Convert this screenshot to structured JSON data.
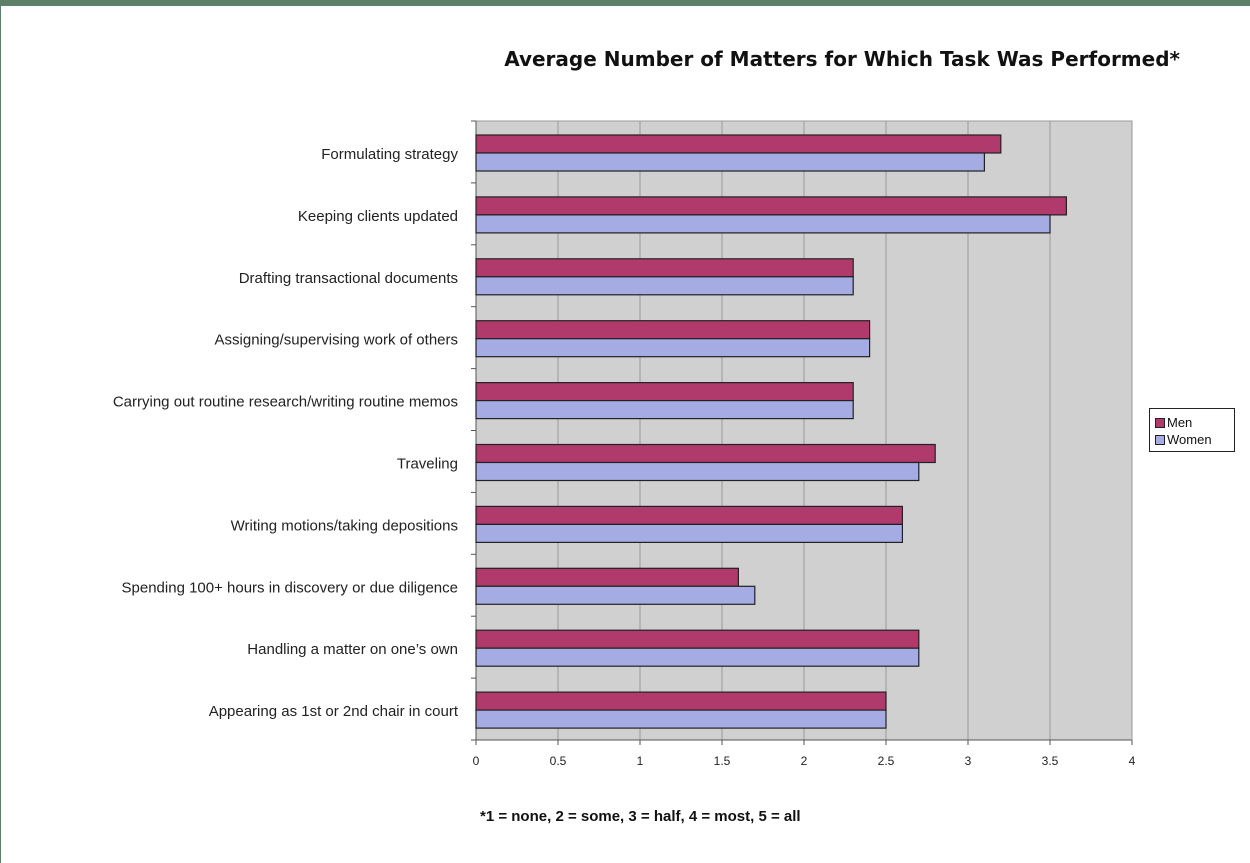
{
  "colors": {
    "band": "#5e7f68",
    "plot_bg": "#d0d0d0",
    "grid": "#9a9a9a",
    "bar_stroke": "#222222",
    "men": "#b03a6c",
    "women": "#a5abe3"
  },
  "footnote": "*1 = none,  2 = some,  3 = half,  4 = most,  5 = all",
  "chart_data": {
    "type": "bar",
    "orientation": "horizontal",
    "title": "Average Number of Matters for Which Task Was Performed*",
    "xlabel": "",
    "ylabel": "",
    "xlim": [
      0,
      4
    ],
    "x_ticks": [
      "0",
      "0.5",
      "1",
      "1.5",
      "2",
      "2.5",
      "3",
      "3.5",
      "4"
    ],
    "grid": "vertical",
    "legend_position": "right",
    "categories": [
      "Formulating strategy",
      "Keeping clients updated",
      "Drafting transactional documents",
      "Assigning/supervising work of others",
      "Carrying out routine research/writing routine memos",
      "Traveling",
      "Writing motions/taking depositions",
      "Spending 100+ hours in discovery or due diligence",
      "Handling a matter on one’s own",
      "Appearing as 1st or 2nd chair in court"
    ],
    "series": [
      {
        "name": "Men",
        "color": "#b03a6c",
        "values": [
          3.2,
          3.6,
          2.3,
          2.4,
          2.3,
          2.8,
          2.6,
          1.6,
          2.7,
          2.5
        ]
      },
      {
        "name": "Women",
        "color": "#a5abe3",
        "values": [
          3.1,
          3.5,
          2.3,
          2.4,
          2.3,
          2.7,
          2.6,
          1.7,
          2.7,
          2.5
        ]
      }
    ]
  }
}
